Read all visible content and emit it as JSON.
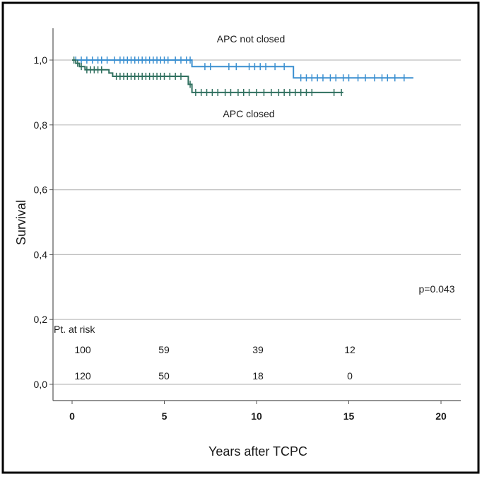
{
  "chart_data": {
    "type": "line",
    "subtype": "kaplan-meier",
    "title": "",
    "xlabel": "Years after TCPC",
    "ylabel": "Survival",
    "xlim": [
      0,
      20
    ],
    "ylim": [
      0,
      1.0
    ],
    "x_ticks": [
      "0",
      "5",
      "10",
      "15",
      "20"
    ],
    "x_tick_values": [
      0,
      5,
      10,
      15,
      20
    ],
    "y_ticks": [
      "0,0",
      "0,2",
      "0,4",
      "0,6",
      "0,8",
      "1,0"
    ],
    "y_tick_values": [
      0,
      0.2,
      0.4,
      0.6,
      0.8,
      1.0
    ],
    "grid": "horizontal",
    "series": [
      {
        "name": "APC not closed",
        "color": "#3a8fd0",
        "steps": [
          [
            0,
            1.0
          ],
          [
            6.5,
            1.0
          ],
          [
            6.5,
            0.98
          ],
          [
            12,
            0.98
          ],
          [
            12,
            0.945
          ],
          [
            18.5,
            0.945
          ]
        ],
        "censor_x": [
          0.2,
          0.5,
          0.8,
          1.1,
          1.4,
          1.6,
          1.9,
          2.3,
          2.6,
          2.8,
          3.0,
          3.2,
          3.4,
          3.6,
          3.8,
          4.0,
          4.2,
          4.4,
          4.6,
          4.8,
          5.0,
          5.2,
          5.6,
          5.9,
          6.2,
          6.4,
          7.2,
          7.5,
          8.5,
          8.9,
          9.6,
          9.9,
          10.2,
          10.5,
          11.0,
          11.5,
          12.4,
          12.7,
          13.0,
          13.3,
          13.6,
          14.0,
          14.3,
          14.7,
          15.0,
          15.5,
          15.9,
          16.4,
          16.8,
          17.1,
          17.5,
          18.0
        ]
      },
      {
        "name": "APC closed",
        "color": "#2f6f5e",
        "steps": [
          [
            0,
            1.0
          ],
          [
            0.2,
            1.0
          ],
          [
            0.2,
            0.99
          ],
          [
            0.4,
            0.99
          ],
          [
            0.4,
            0.98
          ],
          [
            0.7,
            0.98
          ],
          [
            0.7,
            0.97
          ],
          [
            2.0,
            0.97
          ],
          [
            2.0,
            0.96
          ],
          [
            2.2,
            0.96
          ],
          [
            2.2,
            0.95
          ],
          [
            6.3,
            0.95
          ],
          [
            6.3,
            0.925
          ],
          [
            6.5,
            0.925
          ],
          [
            6.5,
            0.9
          ],
          [
            14.7,
            0.9
          ]
        ],
        "censor_x": [
          0.1,
          0.3,
          0.5,
          0.8,
          1.0,
          1.2,
          1.4,
          1.6,
          2.4,
          2.6,
          2.8,
          3.0,
          3.2,
          3.4,
          3.6,
          3.8,
          4.0,
          4.2,
          4.4,
          4.6,
          4.8,
          5.0,
          5.3,
          5.6,
          5.9,
          6.4,
          6.7,
          7.0,
          7.3,
          7.6,
          7.9,
          8.3,
          8.6,
          9.0,
          9.3,
          9.6,
          10.0,
          10.4,
          10.8,
          11.2,
          11.5,
          11.8,
          12.1,
          12.4,
          12.7,
          13.0,
          14.2,
          14.6
        ]
      }
    ],
    "annotations": {
      "label_top": "APC not closed",
      "label_bottom": "APC closed",
      "p_value": "p=0.043"
    },
    "risk_table": {
      "title": "Pt. at risk",
      "rows": [
        [
          "100",
          "59",
          "39",
          "12"
        ],
        [
          "120",
          "50",
          "18",
          "0"
        ]
      ]
    }
  }
}
